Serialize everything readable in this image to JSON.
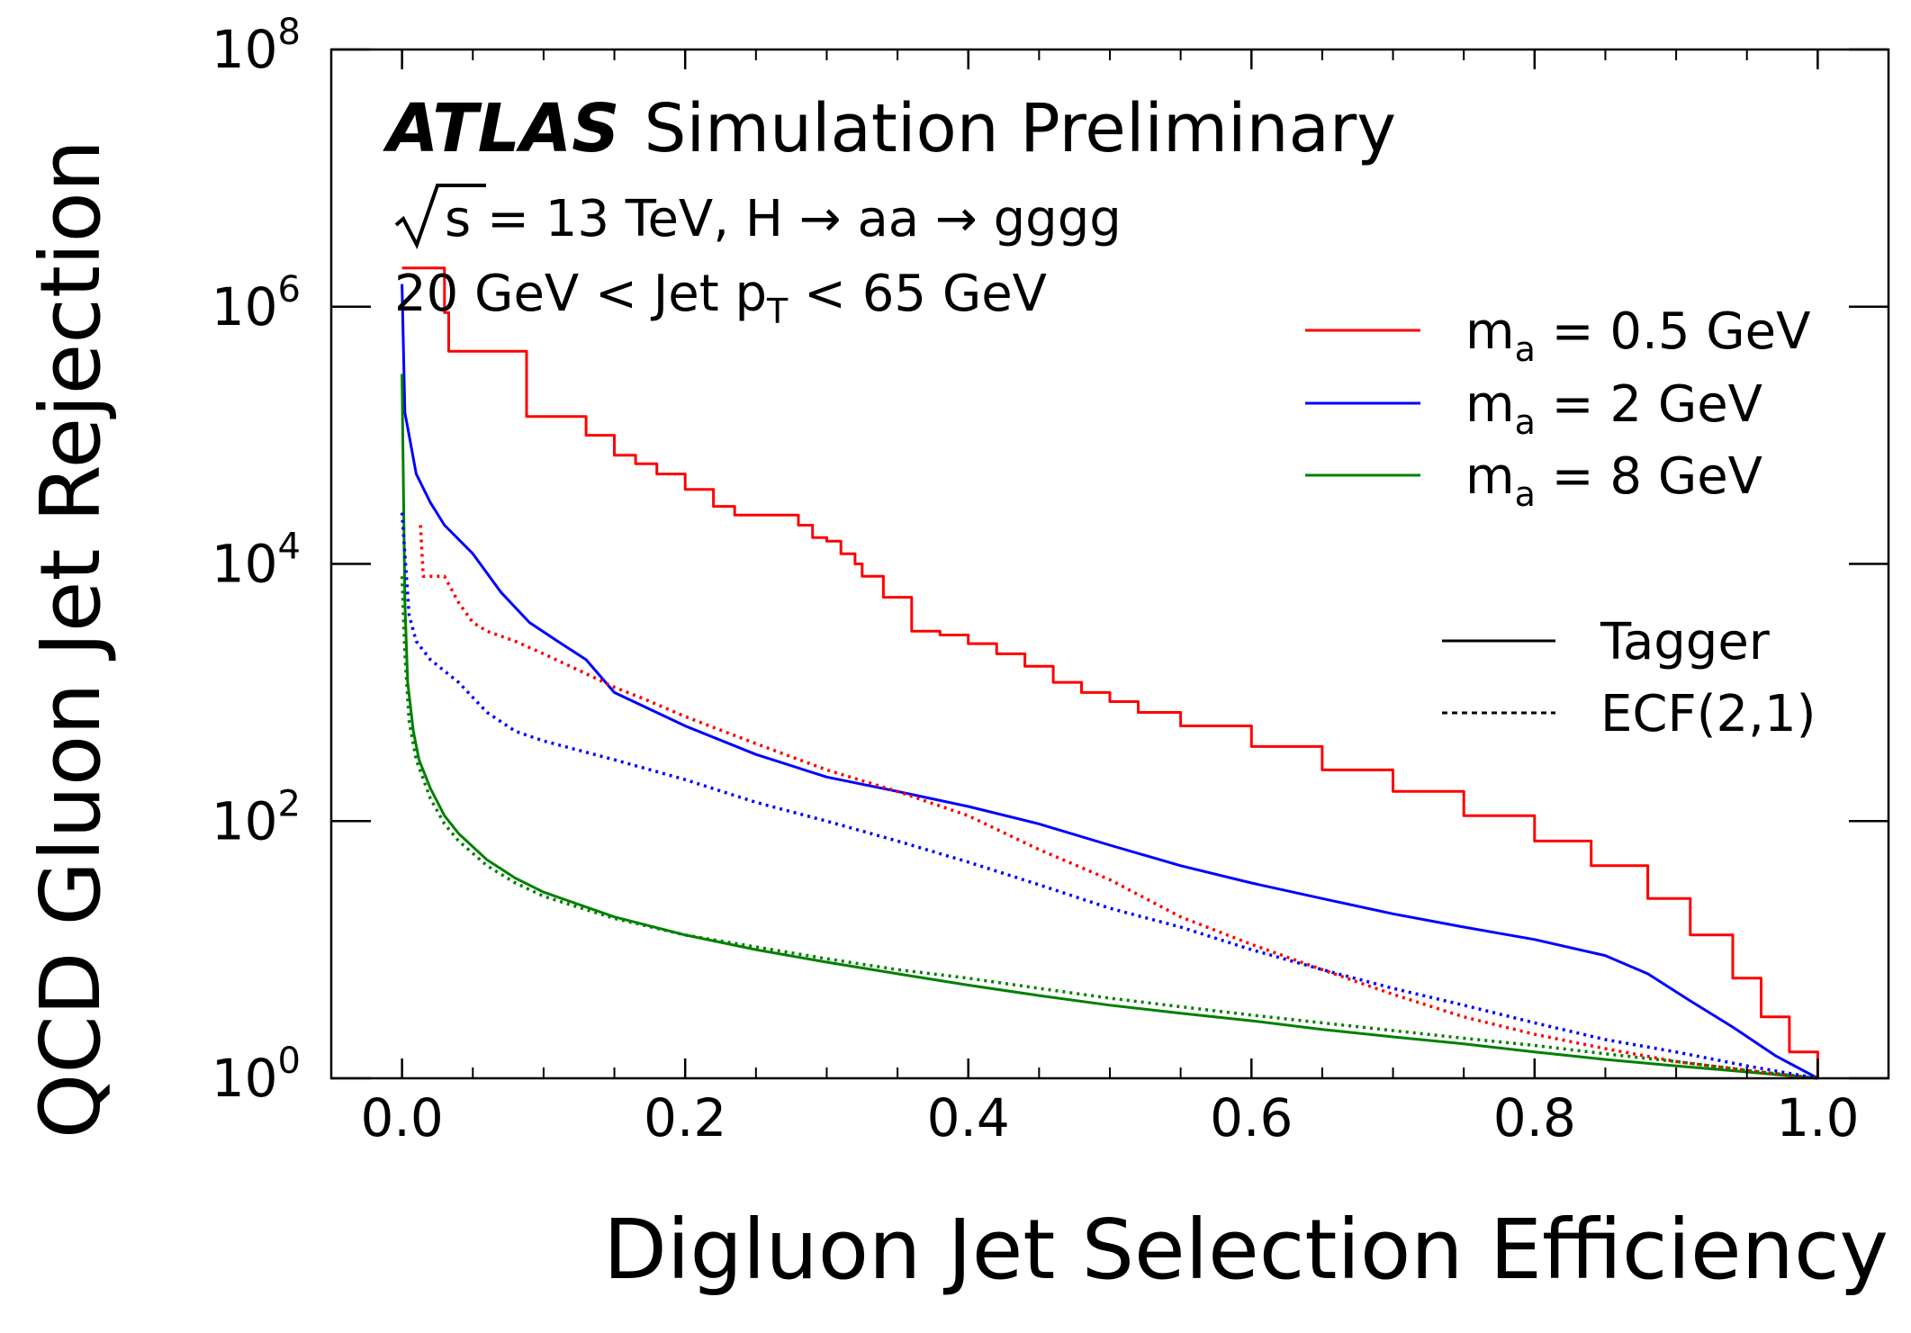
{
  "chart_data": {
    "type": "line",
    "title": "Simulation Preliminary",
    "experiment": "ATLAS",
    "annotations": {
      "energy_prefix": "s",
      "energy_rest": " = 13 TeV, H → aa → gggg",
      "pt_prefix": "20 GeV < Jet p",
      "pt_sub": "T",
      "pt_rest": " < 65 GeV"
    },
    "xlabel": "Digluon Jet Selection Efficiency",
    "ylabel": "QCD Gluon Jet Rejection",
    "xlim": [
      -0.05,
      1.05
    ],
    "ylim": [
      1,
      100000000
    ],
    "yscale": "log",
    "x_ticks": [
      "0.0",
      "0.2",
      "0.4",
      "0.6",
      "0.8",
      "1.0"
    ],
    "x_tick_values": [
      0.0,
      0.2,
      0.4,
      0.6,
      0.8,
      1.0
    ],
    "y_tick_base": "10",
    "y_tick_exponents": [
      "0",
      "2",
      "4",
      "6",
      "8"
    ],
    "legend_position": "right",
    "legend_mass": [
      {
        "m": "m",
        "sub": "a",
        "label": " = 0.5 GeV",
        "color": "#ff0000"
      },
      {
        "m": "m",
        "sub": "a",
        "label": " = 2 GeV",
        "color": "#0000ff"
      },
      {
        "m": "m",
        "sub": "a",
        "label": " = 8 GeV",
        "color": "#008000"
      }
    ],
    "legend_style": [
      {
        "label": "Tagger",
        "dash": "solid"
      },
      {
        "label": "ECF(2,1)",
        "dash": "dotted"
      }
    ],
    "series": [
      {
        "mass": "0.5 GeV",
        "method": "Tagger",
        "color": "#ff0000",
        "dash": "solid",
        "step": true,
        "points": [
          [
            0.0,
            2000000
          ],
          [
            0.03,
            900000
          ],
          [
            0.033,
            450000
          ],
          [
            0.083,
            450000
          ],
          [
            0.088,
            140000
          ],
          [
            0.125,
            140000
          ],
          [
            0.13,
            100000
          ],
          [
            0.145,
            100000
          ],
          [
            0.15,
            70000
          ],
          [
            0.165,
            60000
          ],
          [
            0.18,
            50000
          ],
          [
            0.2,
            38000
          ],
          [
            0.22,
            28000
          ],
          [
            0.235,
            24000
          ],
          [
            0.27,
            24000
          ],
          [
            0.28,
            20000
          ],
          [
            0.29,
            16000
          ],
          [
            0.3,
            15000
          ],
          [
            0.31,
            12000
          ],
          [
            0.32,
            10000
          ],
          [
            0.325,
            8000
          ],
          [
            0.34,
            5500
          ],
          [
            0.36,
            3000
          ],
          [
            0.38,
            2800
          ],
          [
            0.4,
            2400
          ],
          [
            0.42,
            2000
          ],
          [
            0.44,
            1600
          ],
          [
            0.46,
            1200
          ],
          [
            0.48,
            1000
          ],
          [
            0.5,
            850
          ],
          [
            0.52,
            700
          ],
          [
            0.55,
            550
          ],
          [
            0.6,
            380
          ],
          [
            0.65,
            250
          ],
          [
            0.7,
            170
          ],
          [
            0.75,
            110
          ],
          [
            0.8,
            70
          ],
          [
            0.84,
            45
          ],
          [
            0.88,
            25
          ],
          [
            0.91,
            13
          ],
          [
            0.94,
            6
          ],
          [
            0.96,
            3
          ],
          [
            0.98,
            1.6
          ],
          [
            1.0,
            1
          ]
        ]
      },
      {
        "mass": "2 GeV",
        "method": "Tagger",
        "color": "#0000ff",
        "dash": "solid",
        "points": [
          [
            0.0,
            1500000
          ],
          [
            0.002,
            150000
          ],
          [
            0.005,
            100000
          ],
          [
            0.01,
            50000
          ],
          [
            0.02,
            30000
          ],
          [
            0.03,
            20000
          ],
          [
            0.05,
            12000
          ],
          [
            0.07,
            6000
          ],
          [
            0.09,
            3500
          ],
          [
            0.11,
            2500
          ],
          [
            0.13,
            1800
          ],
          [
            0.15,
            1000
          ],
          [
            0.2,
            550
          ],
          [
            0.25,
            330
          ],
          [
            0.3,
            220
          ],
          [
            0.35,
            170
          ],
          [
            0.4,
            130
          ],
          [
            0.45,
            95
          ],
          [
            0.5,
            65
          ],
          [
            0.55,
            45
          ],
          [
            0.6,
            33
          ],
          [
            0.65,
            25
          ],
          [
            0.7,
            19
          ],
          [
            0.75,
            15
          ],
          [
            0.8,
            12
          ],
          [
            0.85,
            9
          ],
          [
            0.88,
            6.5
          ],
          [
            0.91,
            4
          ],
          [
            0.94,
            2.5
          ],
          [
            0.97,
            1.5
          ],
          [
            1.0,
            1
          ]
        ]
      },
      {
        "mass": "8 GeV",
        "method": "Tagger",
        "color": "#008000",
        "dash": "solid",
        "points": [
          [
            0.0,
            300000
          ],
          [
            0.002,
            5000
          ],
          [
            0.004,
            1200
          ],
          [
            0.008,
            500
          ],
          [
            0.012,
            300
          ],
          [
            0.02,
            180
          ],
          [
            0.03,
            110
          ],
          [
            0.04,
            80
          ],
          [
            0.06,
            50
          ],
          [
            0.08,
            36
          ],
          [
            0.1,
            28
          ],
          [
            0.15,
            18
          ],
          [
            0.2,
            13
          ],
          [
            0.25,
            10
          ],
          [
            0.3,
            8
          ],
          [
            0.35,
            6.5
          ],
          [
            0.4,
            5.3
          ],
          [
            0.45,
            4.4
          ],
          [
            0.5,
            3.7
          ],
          [
            0.55,
            3.2
          ],
          [
            0.6,
            2.8
          ],
          [
            0.65,
            2.4
          ],
          [
            0.7,
            2.1
          ],
          [
            0.75,
            1.85
          ],
          [
            0.8,
            1.6
          ],
          [
            0.85,
            1.4
          ],
          [
            0.9,
            1.25
          ],
          [
            0.95,
            1.12
          ],
          [
            1.0,
            1
          ]
        ]
      },
      {
        "mass": "0.5 GeV",
        "method": "ECF(2,1)",
        "color": "#ff0000",
        "dash": "dotted",
        "points": [
          [
            0.013,
            20000
          ],
          [
            0.015,
            8000
          ],
          [
            0.03,
            8000
          ],
          [
            0.04,
            5000
          ],
          [
            0.05,
            3500
          ],
          [
            0.06,
            3000
          ],
          [
            0.08,
            2500
          ],
          [
            0.1,
            2000
          ],
          [
            0.13,
            1400
          ],
          [
            0.15,
            1100
          ],
          [
            0.17,
            900
          ],
          [
            0.2,
            650
          ],
          [
            0.25,
            400
          ],
          [
            0.3,
            250
          ],
          [
            0.35,
            170
          ],
          [
            0.4,
            110
          ],
          [
            0.45,
            60
          ],
          [
            0.5,
            35
          ],
          [
            0.55,
            18
          ],
          [
            0.6,
            11
          ],
          [
            0.65,
            7
          ],
          [
            0.7,
            4.5
          ],
          [
            0.75,
            3
          ],
          [
            0.8,
            2.2
          ],
          [
            0.85,
            1.7
          ],
          [
            0.9,
            1.35
          ],
          [
            0.95,
            1.15
          ],
          [
            1.0,
            1
          ]
        ]
      },
      {
        "mass": "2 GeV",
        "method": "ECF(2,1)",
        "color": "#0000ff",
        "dash": "dotted",
        "points": [
          [
            0.0,
            25000
          ],
          [
            0.005,
            4000
          ],
          [
            0.01,
            2500
          ],
          [
            0.02,
            1800
          ],
          [
            0.04,
            1200
          ],
          [
            0.06,
            700
          ],
          [
            0.08,
            500
          ],
          [
            0.1,
            420
          ],
          [
            0.15,
            300
          ],
          [
            0.2,
            210
          ],
          [
            0.25,
            140
          ],
          [
            0.3,
            100
          ],
          [
            0.35,
            70
          ],
          [
            0.4,
            48
          ],
          [
            0.45,
            32
          ],
          [
            0.5,
            21
          ],
          [
            0.55,
            15
          ],
          [
            0.6,
            10
          ],
          [
            0.65,
            7
          ],
          [
            0.7,
            5
          ],
          [
            0.75,
            3.7
          ],
          [
            0.8,
            2.7
          ],
          [
            0.85,
            2
          ],
          [
            0.9,
            1.6
          ],
          [
            0.95,
            1.25
          ],
          [
            1.0,
            1
          ]
        ]
      },
      {
        "mass": "8 GeV",
        "method": "ECF(2,1)",
        "color": "#008000",
        "dash": "dotted",
        "points": [
          [
            0.0,
            8000
          ],
          [
            0.002,
            2000
          ],
          [
            0.005,
            600
          ],
          [
            0.01,
            300
          ],
          [
            0.02,
            150
          ],
          [
            0.03,
            95
          ],
          [
            0.04,
            70
          ],
          [
            0.06,
            45
          ],
          [
            0.08,
            33
          ],
          [
            0.1,
            26
          ],
          [
            0.15,
            17.5
          ],
          [
            0.2,
            13
          ],
          [
            0.25,
            10.5
          ],
          [
            0.3,
            8.5
          ],
          [
            0.35,
            7
          ],
          [
            0.4,
            6
          ],
          [
            0.45,
            5
          ],
          [
            0.5,
            4.2
          ],
          [
            0.55,
            3.6
          ],
          [
            0.6,
            3.1
          ],
          [
            0.65,
            2.7
          ],
          [
            0.7,
            2.35
          ],
          [
            0.75,
            2.05
          ],
          [
            0.8,
            1.8
          ],
          [
            0.85,
            1.55
          ],
          [
            0.9,
            1.35
          ],
          [
            0.95,
            1.15
          ],
          [
            1.0,
            1
          ]
        ]
      }
    ]
  }
}
